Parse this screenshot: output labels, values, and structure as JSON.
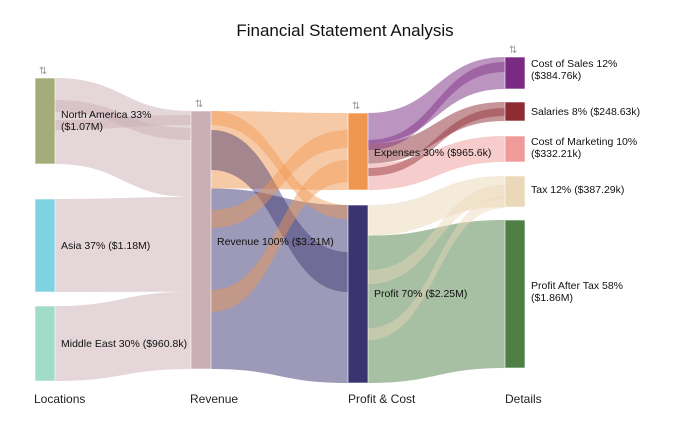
{
  "chart_data": {
    "type": "sankey",
    "title": "Financial Statement Analysis",
    "columns": [
      "Locations",
      "Revenue",
      "Profit & Cost",
      "Details"
    ],
    "nodes": [
      {
        "id": "na",
        "col": 0,
        "label": "North America 33%",
        "sublabel": "($1.07M)",
        "color": "#a4ad7a"
      },
      {
        "id": "asia",
        "col": 0,
        "label": "Asia 37% ($1.18M)",
        "color": "#7fd3e0"
      },
      {
        "id": "me",
        "col": 0,
        "label": "Middle East 30% ($960.8k)",
        "color": "#a1dcc8"
      },
      {
        "id": "rev",
        "col": 1,
        "label": "Revenue 100% ($3.21M)",
        "color": "#c9aeb3"
      },
      {
        "id": "exp",
        "col": 2,
        "label": "Expenses 30% ($965.6k)",
        "color": "#f0964f"
      },
      {
        "id": "profit",
        "col": 2,
        "label": "Profit 70% ($2.25M)",
        "color": "#3b3472"
      },
      {
        "id": "cos",
        "col": 3,
        "label": "Cost of Sales 12%",
        "sublabel": "($384.76k)",
        "color": "#7a2a82"
      },
      {
        "id": "sal",
        "col": 3,
        "label": "Salaries 8% ($248.63k)",
        "color": "#8e2b33"
      },
      {
        "id": "com",
        "col": 3,
        "label": "Cost of Marketing 10%",
        "sublabel": "($332.21k)",
        "color": "#f09a9a"
      },
      {
        "id": "tax",
        "col": 3,
        "label": "Tax 12% ($387.29k)",
        "color": "#ead8b8"
      },
      {
        "id": "pat",
        "col": 3,
        "label": "Profit After Tax 58%",
        "sublabel": "($1.86M)",
        "color": "#4f7f45"
      }
    ],
    "links": [
      {
        "source": "na",
        "target": "rev",
        "value": 1.07
      },
      {
        "source": "asia",
        "target": "rev",
        "value": 1.18
      },
      {
        "source": "me",
        "target": "rev",
        "value": 0.9608
      },
      {
        "source": "rev",
        "target": "exp",
        "value": 0.9656
      },
      {
        "source": "rev",
        "target": "profit",
        "value": 2.25
      },
      {
        "source": "exp",
        "target": "cos",
        "value": 0.38476
      },
      {
        "source": "exp",
        "target": "sal",
        "value": 0.24863
      },
      {
        "source": "exp",
        "target": "com",
        "value": 0.33221
      },
      {
        "source": "profit",
        "target": "tax",
        "value": 0.38729
      },
      {
        "source": "profit",
        "target": "pat",
        "value": 1.86
      }
    ],
    "link_colors": {
      "rev": "#c9aeb3",
      "exp": "#f0964f",
      "profit": "#3b3472",
      "cos": "#7a2a82",
      "sal": "#8e2b33",
      "com": "#f09a9a",
      "tax": "#ead8b8",
      "pat": "#4f7f45"
    },
    "sort_icon": "sort-arrows-icon"
  }
}
